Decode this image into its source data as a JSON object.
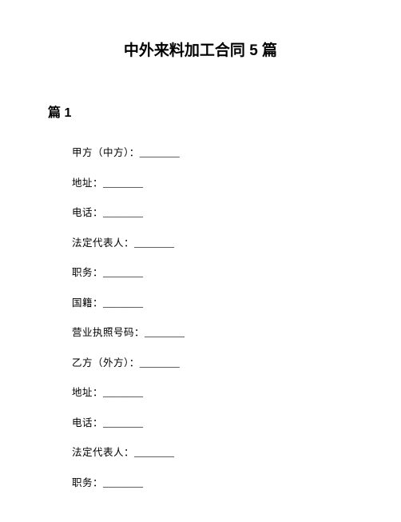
{
  "document": {
    "title": "中外来料加工合同 5 篇",
    "section_heading": "篇 1",
    "fields": [
      {
        "label": "甲方（中方）：",
        "blank": "________"
      },
      {
        "label": "地址：",
        "blank": "________"
      },
      {
        "label": "电话：",
        "blank": "________"
      },
      {
        "label": "法定代表人：",
        "blank": "________"
      },
      {
        "label": "职务：",
        "blank": "________"
      },
      {
        "label": "国籍：",
        "blank": "________"
      },
      {
        "label": "营业执照号码：",
        "blank": "________"
      },
      {
        "label": "乙方（外方）：",
        "blank": "________"
      },
      {
        "label": "地址：",
        "blank": "________"
      },
      {
        "label": "电话：",
        "blank": "________"
      },
      {
        "label": "法定代表人：",
        "blank": "________"
      },
      {
        "label": "职务：",
        "blank": "________"
      }
    ],
    "colors": {
      "background": "#ffffff",
      "text": "#000000"
    },
    "typography": {
      "title_fontsize": 19,
      "heading_fontsize": 16,
      "body_fontsize": 12.5,
      "title_weight": "bold",
      "heading_weight": "bold"
    }
  }
}
